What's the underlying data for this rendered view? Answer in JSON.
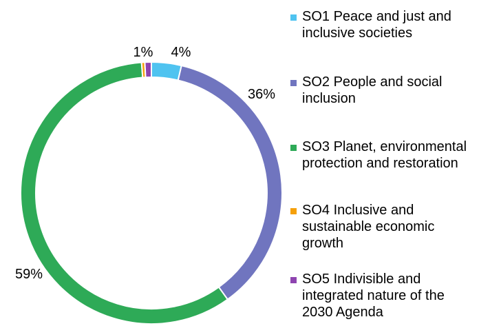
{
  "chart_data": {
    "type": "pie",
    "variant": "donut",
    "categories": [
      "SO1 Peace and just and inclusive societies",
      "SO2 People and social inclusion",
      "SO3 Planet, environmental protection and restoration",
      "SO4 Inclusive and sustainable economic growth",
      "SO5 Indivisible and integrated nature of the 2030 Agenda"
    ],
    "values": [
      3.7,
      36.4,
      58.7,
      0.4,
      0.8
    ],
    "data_labels": [
      "4%",
      "36%",
      "59%",
      "",
      "1%"
    ],
    "colors": [
      "#4fc3f0",
      "#7075bf",
      "#2eaa57",
      "#f5a00a",
      "#8e44b0"
    ],
    "legend_position": "right"
  },
  "legend": {
    "items": [
      {
        "label": "SO1 Peace and just and\ninclusive societies",
        "color": "#4fc3f0"
      },
      {
        "label": "SO2 People and social\ninclusion",
        "color": "#7075bf"
      },
      {
        "label": "SO3 Planet, environmental\nprotection and restoration",
        "color": "#2eaa57"
      },
      {
        "label": "SO4 Inclusive and\nsustainable economic\ngrowth",
        "color": "#f5a00a"
      },
      {
        "label": "SO5 Indivisible and\nintegrated nature of the\n2030 Agenda",
        "color": "#8e44b0"
      }
    ]
  }
}
